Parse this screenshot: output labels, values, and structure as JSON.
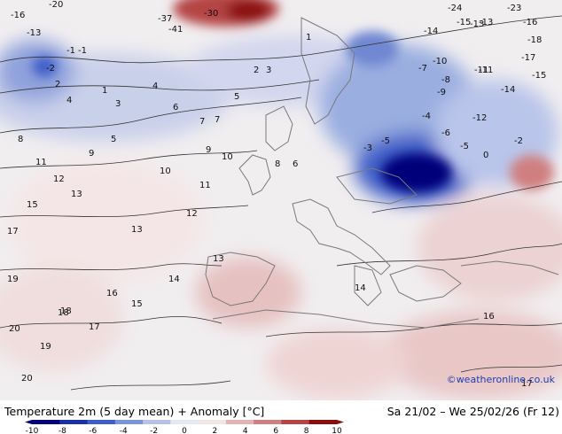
{
  "title": "Temperature 2m (5 day mean) + Anomaly [°C]",
  "period": "Sa 21/02 – We 25/02/26 (Fr 12)",
  "credit": "©weatheronline.co.uk",
  "colorbar": {
    "ticks": [
      "-10",
      "-8",
      "-6",
      "-4",
      "-2",
      "0",
      "2",
      "4",
      "6",
      "8",
      "10"
    ],
    "colors": [
      "#00007a",
      "#1a2fa8",
      "#3f5fc8",
      "#7b93d8",
      "#b6c3e6",
      "#e6e9f2",
      "#f2e6e6",
      "#e3b3b3",
      "#cf7f7f",
      "#b54444",
      "#8c0d0d"
    ]
  },
  "map_labels": [
    {
      "text": "-16"
    },
    {
      "text": "-13"
    },
    {
      "text": "-20"
    },
    {
      "text": "-37"
    },
    {
      "text": "-41"
    },
    {
      "text": "-30"
    },
    {
      "text": "-24"
    },
    {
      "text": "-15"
    },
    {
      "text": "-16"
    },
    {
      "text": "-13"
    },
    {
      "text": "-18"
    },
    {
      "text": "-23"
    },
    {
      "text": "-17"
    },
    {
      "text": "-15"
    },
    {
      "text": "-14"
    },
    {
      "text": "-11"
    },
    {
      "text": "-10"
    },
    {
      "text": "-12"
    },
    {
      "text": "-9"
    },
    {
      "text": "-8"
    },
    {
      "text": "-6"
    },
    {
      "text": "-5"
    },
    {
      "text": "-4"
    },
    {
      "text": "-3"
    },
    {
      "text": "-2"
    },
    {
      "text": "-1"
    },
    {
      "text": "0"
    },
    {
      "text": "1"
    },
    {
      "text": "2"
    },
    {
      "text": "3"
    },
    {
      "text": "4"
    },
    {
      "text": "5"
    },
    {
      "text": "6"
    },
    {
      "text": "7"
    },
    {
      "text": "8"
    },
    {
      "text": "9"
    },
    {
      "text": "10"
    },
    {
      "text": "11"
    },
    {
      "text": "12"
    },
    {
      "text": "13"
    },
    {
      "text": "14"
    },
    {
      "text": "15"
    },
    {
      "text": "16"
    },
    {
      "text": "17"
    },
    {
      "text": "18"
    },
    {
      "text": "19"
    },
    {
      "text": "20"
    },
    {
      "text": "17"
    },
    {
      "text": "15"
    },
    {
      "text": "13"
    },
    {
      "text": "12"
    },
    {
      "text": "10"
    },
    {
      "text": "8"
    },
    {
      "text": "6"
    },
    {
      "text": "14"
    },
    {
      "text": "16"
    },
    {
      "text": "19"
    },
    {
      "text": "18"
    },
    {
      "text": "13"
    },
    {
      "text": "11"
    },
    {
      "text": "9"
    },
    {
      "text": "7"
    },
    {
      "text": "5"
    },
    {
      "text": "4"
    },
    {
      "text": "3"
    },
    {
      "text": "2"
    },
    {
      "text": "1"
    },
    {
      "text": "-1"
    },
    {
      "text": "-2"
    },
    {
      "text": "-5"
    },
    {
      "text": "-7"
    },
    {
      "text": "-13"
    },
    {
      "text": "-14"
    },
    {
      "text": "-11"
    },
    {
      "text": "17"
    },
    {
      "text": "20"
    }
  ]
}
